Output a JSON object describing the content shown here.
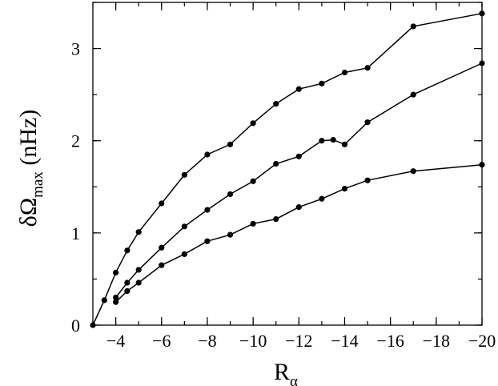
{
  "chart_data": {
    "type": "line",
    "xlabel": {
      "main": "R",
      "sub": "α"
    },
    "ylabel": {
      "main": "δΩ",
      "sub": "max",
      "unit": " (nHz)"
    },
    "xlim": [
      -3,
      -20
    ],
    "ylim": [
      0,
      3.5
    ],
    "x_ticks": [
      -4,
      -6,
      -8,
      -10,
      -12,
      -14,
      -16,
      -18,
      -20
    ],
    "x_tick_labels": [
      "−4",
      "−6",
      "−8",
      "−10",
      "−12",
      "−14",
      "−16",
      "−18",
      "−20"
    ],
    "x_minor_step": 1,
    "y_ticks": [
      0,
      1,
      2,
      3
    ],
    "y_tick_labels": [
      "0",
      "1",
      "2",
      "3"
    ],
    "y_minor_step": 0.5,
    "grid": false,
    "color": "#000000",
    "series": [
      {
        "points": [
          [
            -3,
            0
          ],
          [
            -3.5,
            0.27
          ],
          [
            -4,
            0.57
          ],
          [
            -4.5,
            0.81
          ],
          [
            -5,
            1.01
          ],
          [
            -6,
            1.32
          ],
          [
            -7,
            1.63
          ],
          [
            -8,
            1.85
          ],
          [
            -9,
            1.96
          ],
          [
            -10,
            2.19
          ],
          [
            -11,
            2.4
          ],
          [
            -12,
            2.56
          ],
          [
            -13,
            2.62
          ],
          [
            -14,
            2.74
          ],
          [
            -15,
            2.79
          ],
          [
            -17,
            3.24
          ],
          [
            -20,
            3.38
          ]
        ]
      },
      {
        "points": [
          [
            -4,
            0.3
          ],
          [
            -4.5,
            0.46
          ],
          [
            -5,
            0.6
          ],
          [
            -6,
            0.84
          ],
          [
            -7,
            1.07
          ],
          [
            -8,
            1.25
          ],
          [
            -9,
            1.42
          ],
          [
            -10,
            1.56
          ],
          [
            -11,
            1.75
          ],
          [
            -12,
            1.83
          ],
          [
            -13,
            2.0
          ],
          [
            -13.5,
            2.01
          ],
          [
            -14,
            1.96
          ],
          [
            -15,
            2.2
          ],
          [
            -17,
            2.5
          ],
          [
            -20,
            2.84
          ]
        ]
      },
      {
        "points": [
          [
            -4,
            0.25
          ],
          [
            -4.5,
            0.37
          ],
          [
            -5,
            0.46
          ],
          [
            -6,
            0.65
          ],
          [
            -7,
            0.77
          ],
          [
            -8,
            0.91
          ],
          [
            -9,
            0.98
          ],
          [
            -10,
            1.1
          ],
          [
            -11,
            1.15
          ],
          [
            -12,
            1.28
          ],
          [
            -13,
            1.37
          ],
          [
            -14,
            1.48
          ],
          [
            -15,
            1.57
          ],
          [
            -17,
            1.67
          ],
          [
            -20,
            1.74
          ]
        ]
      }
    ]
  }
}
